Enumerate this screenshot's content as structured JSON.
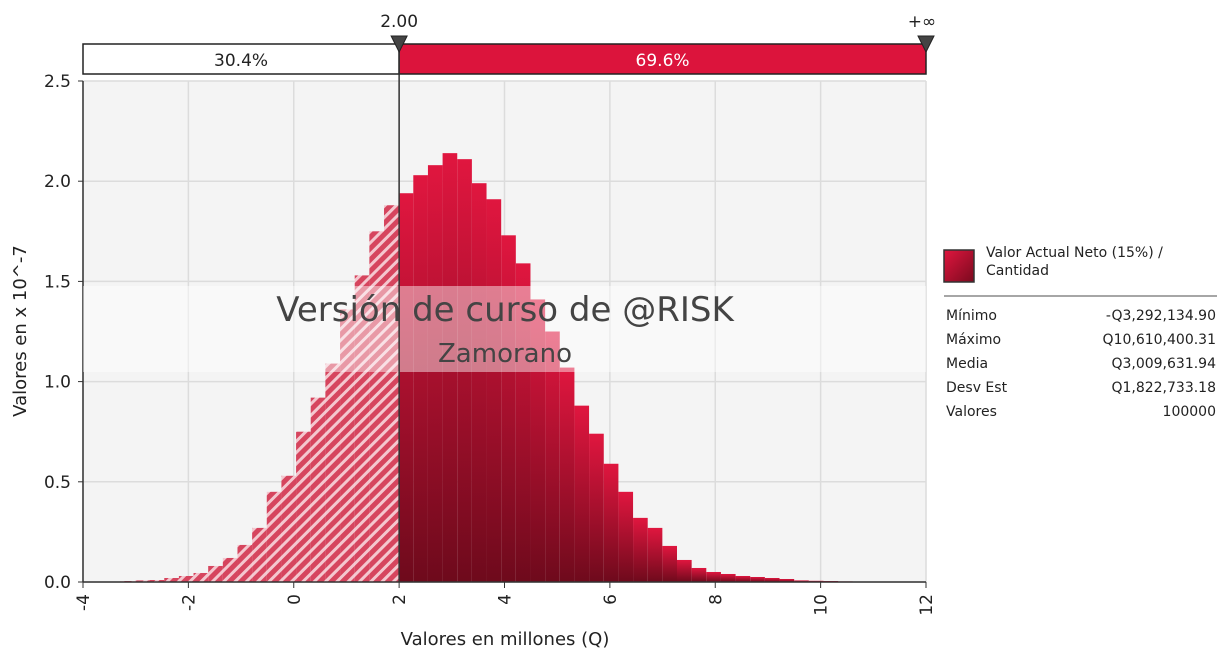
{
  "chart_data": {
    "type": "histogram",
    "xlabel": "Valores en millones (Q)",
    "ylabel": "Valores en x 10^-7",
    "watermark": [
      "Versión de curso de @RISK",
      "Zamorano"
    ],
    "bins": [
      -3.292,
      -3.014,
      -2.736,
      -2.458,
      -2.18,
      -1.902,
      -1.624,
      -1.346,
      -1.068,
      -0.79,
      -0.512,
      -0.234,
      0.044,
      0.322,
      0.6,
      0.879,
      1.157,
      1.435,
      1.713,
      1.991,
      2.269,
      2.547,
      2.825,
      3.103,
      3.381,
      3.659,
      3.937,
      4.215,
      4.493,
      4.771,
      5.049,
      5.327,
      5.605,
      5.884,
      6.162,
      6.44,
      6.718,
      6.996,
      7.274,
      7.552,
      7.83,
      8.108,
      8.386,
      8.664,
      8.942,
      9.22,
      9.498,
      9.776,
      10.054,
      10.332,
      10.61
    ],
    "series": [
      {
        "name": "Valor Actual Neto (15%) / Cantidad",
        "color": "#dc143c",
        "values": [
          0.005,
          0.008,
          0.01,
          0.02,
          0.03,
          0.045,
          0.08,
          0.12,
          0.185,
          0.27,
          0.45,
          0.53,
          0.75,
          0.92,
          1.09,
          1.36,
          1.53,
          1.75,
          1.88,
          1.94,
          2.03,
          2.08,
          2.14,
          2.11,
          1.99,
          1.91,
          1.73,
          1.59,
          1.41,
          1.25,
          1.07,
          0.88,
          0.74,
          0.59,
          0.45,
          0.32,
          0.27,
          0.18,
          0.11,
          0.07,
          0.05,
          0.04,
          0.03,
          0.025,
          0.02,
          0.015,
          0.008,
          0.006,
          0.005,
          0.003
        ]
      }
    ],
    "xlim": [
      -4,
      12
    ],
    "xticks": [
      -4,
      -2,
      0,
      2,
      4,
      6,
      8,
      10,
      12
    ],
    "ylim": [
      0,
      2.5
    ],
    "yticks": [
      {
        "value": 0,
        "label": "0.0"
      },
      0.5,
      {
        "value": 1,
        "label": "1.0"
      },
      1.5,
      {
        "value": 2,
        "label": "2.0"
      },
      2.5
    ],
    "grid": true,
    "delimiter": {
      "value": 2,
      "label": "2.00",
      "right_label": "+∞"
    },
    "regions": {
      "values": [
        30.4,
        69.6
      ],
      "value_labels": [
        "30.4%",
        "69.6%"
      ]
    },
    "stats": [
      [
        "Mínimo",
        "-Q3,292,134.90"
      ],
      [
        "Máximo",
        "Q10,610,400.31"
      ],
      [
        "Media",
        "Q3,009,631.94"
      ],
      [
        "Desv Est",
        "Q1,822,733.18"
      ],
      [
        "Valores",
        "100000"
      ]
    ]
  }
}
